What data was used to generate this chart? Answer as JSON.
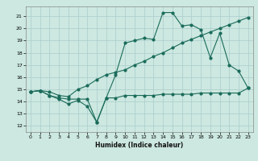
{
  "title": "",
  "xlabel": "Humidex (Indice chaleur)",
  "bg_color": "#cce8e0",
  "grid_color": "#aacccc",
  "line_color": "#1a6b5a",
  "xlim": [
    -0.5,
    23.5
  ],
  "ylim": [
    11.5,
    21.8
  ],
  "yticks": [
    12,
    13,
    14,
    15,
    16,
    17,
    18,
    19,
    20,
    21
  ],
  "xticks": [
    0,
    1,
    2,
    3,
    4,
    5,
    6,
    7,
    8,
    9,
    10,
    11,
    12,
    13,
    14,
    15,
    16,
    17,
    18,
    19,
    20,
    21,
    22,
    23
  ],
  "line1_x": [
    0,
    1,
    2,
    3,
    4,
    5,
    6,
    7,
    8,
    9,
    10,
    11,
    12,
    13,
    14,
    15,
    16,
    17,
    18,
    19,
    20,
    21,
    22,
    23
  ],
  "line1_y": [
    14.8,
    14.9,
    14.5,
    14.3,
    14.2,
    14.2,
    14.2,
    12.3,
    14.3,
    14.3,
    14.5,
    14.5,
    14.5,
    14.5,
    14.6,
    14.6,
    14.6,
    14.6,
    14.7,
    14.7,
    14.7,
    14.7,
    14.7,
    15.1
  ],
  "line2_x": [
    0,
    1,
    2,
    3,
    4,
    5,
    6,
    7,
    8,
    9,
    10,
    11,
    12,
    13,
    14,
    15,
    16,
    17,
    18,
    19,
    20,
    21,
    22,
    23
  ],
  "line2_y": [
    14.8,
    14.9,
    14.8,
    14.5,
    14.4,
    15.0,
    15.3,
    15.8,
    16.2,
    16.4,
    16.6,
    17.0,
    17.3,
    17.7,
    18.0,
    18.4,
    18.8,
    19.1,
    19.4,
    19.7,
    20.0,
    20.3,
    20.6,
    20.9
  ],
  "line3_x": [
    0,
    1,
    2,
    3,
    4,
    5,
    6,
    7,
    8,
    9,
    10,
    11,
    12,
    13,
    14,
    15,
    16,
    17,
    18,
    19,
    20,
    21,
    22,
    23
  ],
  "line3_y": [
    14.8,
    14.9,
    14.5,
    14.2,
    13.8,
    14.1,
    13.6,
    12.3,
    14.3,
    16.2,
    18.8,
    19.0,
    19.2,
    19.1,
    21.3,
    21.3,
    20.2,
    20.3,
    19.9,
    17.6,
    19.6,
    17.0,
    16.5,
    15.1
  ]
}
